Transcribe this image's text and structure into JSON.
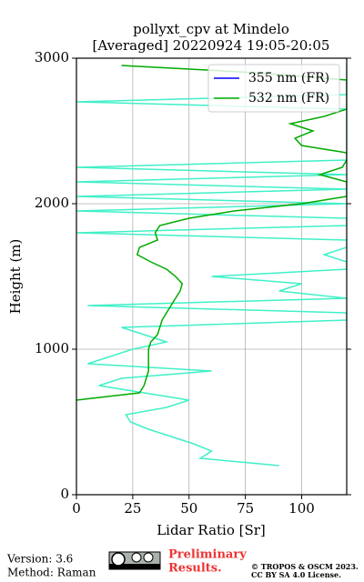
{
  "chart_data": {
    "type": "line",
    "title": [
      "pollyxt_cpv at Mindelo",
      "[Averaged] 20220924 19:05-20:05"
    ],
    "xlabel": "Lidar Ratio [Sr]",
    "ylabel": "Height (m)",
    "y": [
      200,
      250,
      300,
      350,
      400,
      450,
      500,
      550,
      600,
      650,
      700,
      750,
      800,
      850,
      900,
      950,
      1000,
      1050,
      1100,
      1150,
      1200,
      1250,
      1300,
      1350,
      1400,
      1450,
      1500,
      1550,
      1600,
      1650,
      1700,
      1750,
      1800,
      1850,
      1900,
      1950,
      2000,
      2050,
      2100,
      2150,
      2200,
      2250,
      2300,
      2350,
      2400,
      2450,
      2500,
      2550,
      2600,
      2650,
      2700,
      2750,
      2800,
      2850,
      2900,
      2950
    ],
    "series": [
      {
        "name": "355 nm (FR)",
        "color": "#0000ff",
        "values": [
          null,
          null,
          null,
          null,
          null,
          null,
          null,
          null,
          null,
          null,
          null,
          null,
          null,
          null,
          null,
          null,
          null,
          null,
          null,
          null,
          null,
          null,
          null,
          null,
          null,
          null,
          null,
          null,
          null,
          null,
          null,
          null,
          null,
          null,
          null,
          null,
          null,
          null,
          null,
          null,
          null,
          null,
          null,
          null,
          null,
          null,
          null,
          null,
          null,
          null,
          null,
          null,
          null,
          null,
          null,
          null
        ]
      },
      {
        "name": "532 nm (FR)",
        "color": "#00aa00",
        "values": [
          null,
          null,
          null,
          null,
          null,
          null,
          null,
          null,
          null,
          0,
          28,
          30,
          31,
          32,
          32,
          32,
          32,
          33,
          36,
          37,
          38,
          40,
          42,
          44,
          46,
          47,
          44,
          40,
          33,
          27,
          28,
          36,
          35,
          37,
          50,
          70,
          100,
          120,
          120,
          120,
          108,
          118,
          120,
          120,
          100,
          97,
          105,
          95,
          110,
          120,
          120,
          120,
          120,
          120,
          80,
          20
        ]
      },
      {
        "color": "#40f0c8",
        "values": [
          90,
          55,
          60,
          52,
          42,
          32,
          24,
          22,
          40,
          50,
          30,
          10,
          20,
          60,
          5,
          15,
          25,
          40,
          30,
          20,
          120,
          120,
          5,
          120,
          90,
          100,
          60,
          120,
          120,
          110,
          120,
          120,
          0,
          120,
          120,
          0,
          120,
          0,
          120,
          0,
          120,
          0,
          120,
          120,
          120,
          120,
          120,
          120,
          120,
          120,
          0,
          120,
          120,
          120,
          120,
          120
        ]
      }
    ],
    "xlim": [
      0,
      120
    ],
    "xticks": [
      0,
      25,
      50,
      75,
      100
    ],
    "ylim": [
      0,
      3000
    ],
    "yticks": [
      0,
      1000,
      2000,
      3000
    ],
    "grid": true,
    "legend": "upper right",
    "footer": {
      "version": "Version: 3.6",
      "method": "Method: Raman",
      "status": [
        "Preliminary",
        "Results."
      ],
      "copyright": [
        "© TROPOS & OSCM 2023.",
        "CC BY SA 4.0 License."
      ]
    }
  }
}
